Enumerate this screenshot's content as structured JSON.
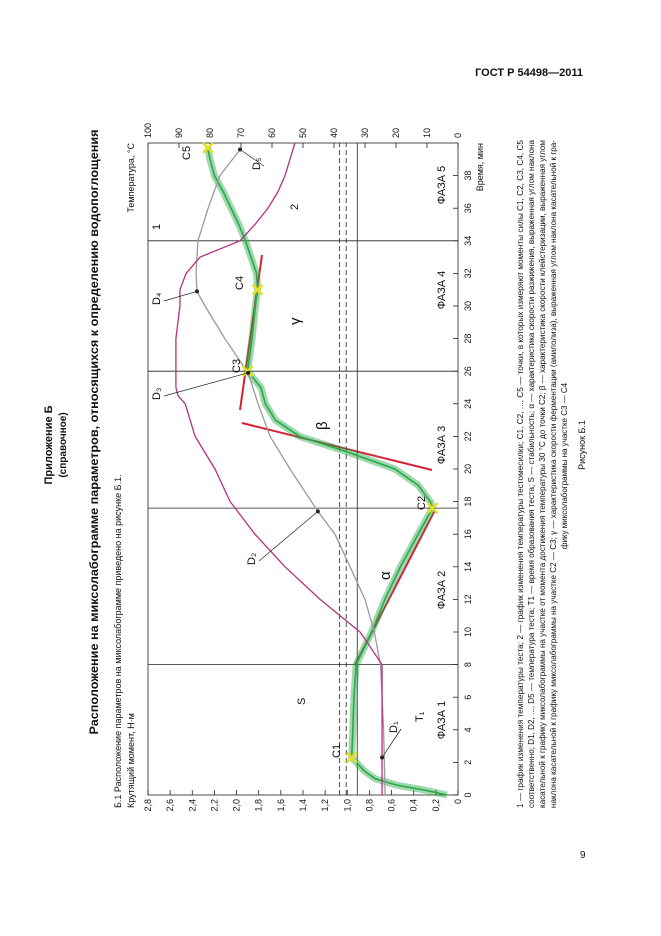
{
  "header": {
    "standard": "ГОСТ Р 54498—2011"
  },
  "appendix": {
    "title": "Приложение Б",
    "note": "(справочное)"
  },
  "section_title": "Расположение на миксолабограмме параметров, относящихся к определению водопоглощения",
  "intro": "Б.1 Расположение параметров на миксолабограмме приведено на рисунке Б.1.",
  "chart_data": {
    "type": "line",
    "y_title": "Крутящий момент, Н·м",
    "y2_title": "Температура, °С",
    "x_title": "Время, мин",
    "xlim": [
      0,
      40
    ],
    "xticks": [
      0,
      2,
      4,
      6,
      8,
      10,
      12,
      14,
      16,
      18,
      20,
      22,
      24,
      26,
      28,
      30,
      32,
      34,
      36,
      38
    ],
    "ylim": [
      0,
      2.8
    ],
    "yticks": [
      0,
      {
        "value": 0.2,
        "label": "0,2"
      },
      {
        "value": 0.4,
        "label": "0,4"
      },
      {
        "value": 0.6,
        "label": "0,6"
      },
      {
        "value": 0.8,
        "label": "0,8"
      },
      {
        "value": 1.0,
        "label": "1,0"
      },
      {
        "value": 1.2,
        "label": "1,2"
      },
      {
        "value": 1.4,
        "label": "1,4"
      },
      {
        "value": 1.6,
        "label": "1,6"
      },
      {
        "value": 1.8,
        "label": "1,8"
      },
      {
        "value": 2.0,
        "label": "2,0"
      },
      {
        "value": 2.2,
        "label": "2,2"
      },
      {
        "value": 2.4,
        "label": "2,4"
      },
      {
        "value": 2.6,
        "label": "2,6"
      },
      {
        "value": 2.8,
        "label": "2,8"
      }
    ],
    "y2lim": [
      0,
      100
    ],
    "y2ticks": [
      0,
      10,
      20,
      30,
      40,
      50,
      60,
      70,
      80,
      90,
      100
    ],
    "series": [
      {
        "color": "#2aa84a",
        "x": [
          0,
          0.3,
          0.6,
          1,
          1.5,
          2.3,
          4,
          6,
          8,
          10,
          12,
          14,
          16,
          17.6,
          18,
          19,
          20,
          21,
          22,
          23,
          24,
          25,
          26,
          28,
          30,
          31,
          32,
          34,
          35,
          36,
          37,
          38,
          39,
          39.7
        ],
        "values": [
          0.1,
          0.3,
          0.55,
          0.75,
          0.85,
          0.96,
          0.95,
          0.94,
          0.92,
          0.78,
          0.66,
          0.52,
          0.36,
          0.23,
          0.25,
          0.36,
          0.57,
          0.98,
          1.43,
          1.65,
          1.74,
          1.78,
          1.9,
          1.86,
          1.83,
          1.81,
          1.82,
          1.92,
          1.98,
          2.05,
          2.12,
          2.2,
          2.24,
          2.26
        ]
      },
      {
        "name": "1",
        "color": "#9a9a9a",
        "axis": "y2",
        "x": [
          0,
          4,
          8,
          10,
          12,
          14,
          16,
          17.4,
          20,
          22,
          24,
          25.9,
          28,
          30,
          30.9,
          32,
          34,
          36,
          38,
          39.6
        ],
        "values": [
          23.5,
          24,
          25,
          27,
          30,
          34.8,
          39.7,
          45.2,
          54.2,
          60.6,
          64.5,
          67.7,
          75.2,
          81.6,
          84.2,
          84.5,
          83.9,
          80.6,
          76.8,
          70.3
        ]
      },
      {
        "name": "2",
        "color": "#b5307f",
        "axis": "y2",
        "x": [
          0,
          2,
          8,
          9,
          10,
          12,
          14,
          16,
          18,
          20,
          22,
          24,
          24.5,
          25,
          28,
          30,
          31,
          32,
          33,
          34,
          35,
          36,
          37,
          38,
          39,
          40
        ],
        "values": [
          24.5,
          24.5,
          24.5,
          28,
          31.6,
          44.5,
          55.8,
          65.5,
          73.5,
          78.4,
          84.8,
          88,
          90.3,
          91,
          91,
          89.7,
          89.7,
          87.7,
          83.2,
          70.3,
          65.5,
          61.3,
          58.1,
          55.8,
          54.2,
          52.6
        ]
      }
    ],
    "c_points": [
      {
        "label": "C1",
        "x": 2.3,
        "value": 0.96
      },
      {
        "label": "C2",
        "x": 17.6,
        "value": 0.23
      },
      {
        "label": "C3",
        "x": 26,
        "value": 1.9
      },
      {
        "label": "C4",
        "x": 31,
        "value": 1.81
      },
      {
        "label": "C5",
        "x": 39.7,
        "value": 2.26
      }
    ],
    "d_points": [
      {
        "label": "D₁",
        "x": 2.3,
        "value": 24.5
      },
      {
        "label": "D₂",
        "x": 17.4,
        "value": 45.2
      },
      {
        "label": "D₃",
        "x": 25.9,
        "value": 67.7
      },
      {
        "label": "D₄",
        "x": 30.9,
        "value": 84.2
      },
      {
        "label": "D₅",
        "x": 39.6,
        "value": 70.3
      }
    ],
    "reference_lines": {
      "dashed": [
        1.07,
        1.01
      ],
      "solid": 0.91
    },
    "phase_bounds": [
      8,
      17.6,
      26,
      34
    ],
    "phases": [
      "ФАЗА 1",
      "ФАЗА 2",
      "ФАЗА 3",
      "ФАЗА 4",
      "ФАЗА 5"
    ],
    "annotations": {
      "S": "S",
      "T1": "T₁",
      "alpha": "α",
      "beta": "β",
      "gamma": "γ"
    }
  },
  "caption": [
    "1 — график изменения температуры теста; 2 — график изменения температуры тестомесилки; C1, C2, ..., C5 — точки, в которых измеряют моменты силы C1, C2, C3, C4, C5",
    "соответственно; D1, D2, ..., D5 — температура теста; T1 — время образования теста; S — стабильность; α — характеристика скорости разжижения, выраженная углом наклона",
    "касательной к графику миксолабограммы на участке от момента достижения температуры 30 °С до точки C2; β — характеристика скорости клейстеризации, выраженная углом",
    "наклона касательной к графику миксолабограммы на участке C2 — C3; γ — характеристика скорости ферментации (амилолиза), выраженная углом наклона касательной к гра-",
    "фику миксолабограммы на участке C3 — C4"
  ],
  "figure_label": "Рисунок Б.1",
  "page_number": "9"
}
